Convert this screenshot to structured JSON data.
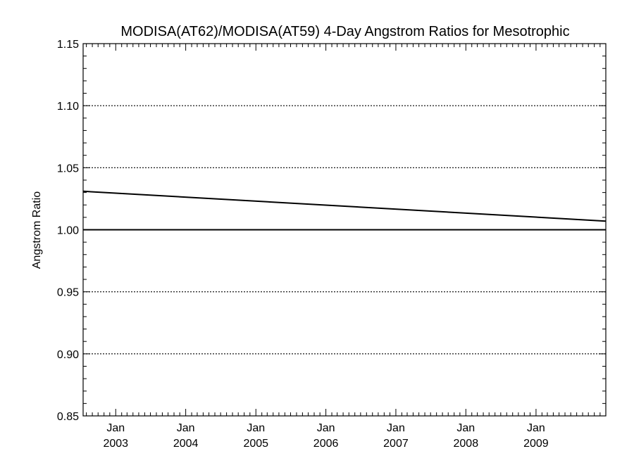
{
  "chart_data": {
    "type": "line",
    "title": "MODISA(AT62)/MODISA(AT59) 4-Day Angstrom Ratios for Mesotrophic",
    "xlabel": "",
    "ylabel": "Angstrom Ratio",
    "xlim": [
      "2002-07-15",
      "2009-12-31"
    ],
    "ylim": [
      0.85,
      1.15
    ],
    "yticks": [
      "0.85",
      "0.90",
      "0.95",
      "1.00",
      "1.05",
      "1.10",
      "1.15"
    ],
    "xticks": [
      {
        "date": "2003-01-01",
        "month": "Jan",
        "year": "2003"
      },
      {
        "date": "2004-01-01",
        "month": "Jan",
        "year": "2004"
      },
      {
        "date": "2005-01-01",
        "month": "Jan",
        "year": "2005"
      },
      {
        "date": "2006-01-01",
        "month": "Jan",
        "year": "2006"
      },
      {
        "date": "2007-01-01",
        "month": "Jan",
        "year": "2007"
      },
      {
        "date": "2008-01-01",
        "month": "Jan",
        "year": "2008"
      },
      {
        "date": "2009-01-01",
        "month": "Jan",
        "year": "2009"
      }
    ],
    "grid": "dotted horizontal",
    "series": [
      {
        "x": [
          "2002-07-15",
          "2009-12-31"
        ],
        "y": [
          1.031,
          1.007
        ],
        "color": "#000000"
      }
    ],
    "reference_line": {
      "y": 1.0,
      "color": "#000000"
    }
  }
}
